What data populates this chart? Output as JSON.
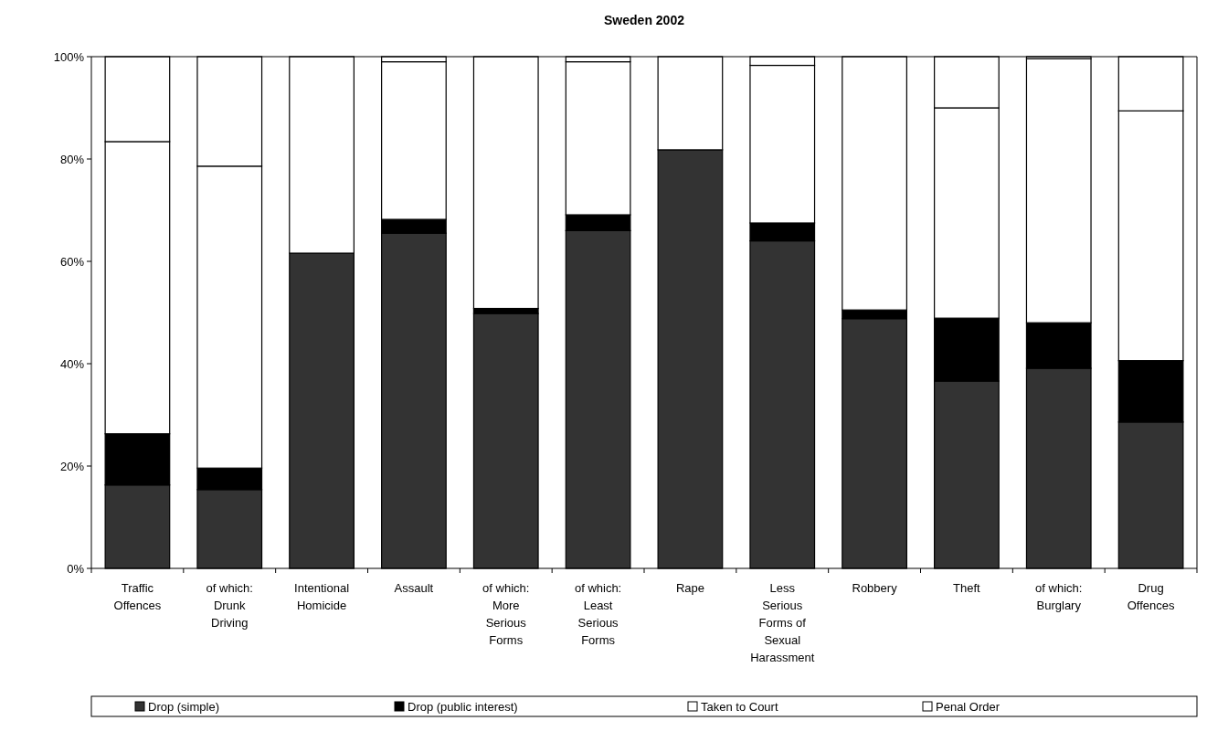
{
  "chart_data": {
    "type": "bar",
    "title": "Sweden 2002",
    "stacked": true,
    "legend": "bottom",
    "ylim": [
      0,
      100
    ],
    "yticks": [
      {
        "value": 0,
        "label": "0%"
      },
      {
        "value": 20,
        "label": "20%"
      },
      {
        "value": 40,
        "label": "40%"
      },
      {
        "value": 60,
        "label": "60%"
      },
      {
        "value": 80,
        "label": "80%"
      },
      {
        "value": 100,
        "label": "100%"
      }
    ],
    "categories": [
      "Traffic Offences",
      "of which: Drunk Driving",
      "Intentional Homicide",
      "Assault",
      "of which: More Serious Forms",
      "of which: Least Serious Forms",
      "Rape",
      "Less Serious Forms of Sexual Harassment",
      "Robbery",
      "Theft",
      "of which: Burglary",
      "Drug Offences"
    ],
    "series": [
      {
        "name": "Drop (simple)",
        "color": "#333333",
        "values": [
          16.3,
          15.4,
          61.6,
          65.5,
          49.8,
          66,
          81.8,
          64,
          48.8,
          36.6,
          39.1,
          28.6
        ]
      },
      {
        "name": "Drop (public interest)",
        "color": "#000000",
        "values": [
          10,
          4.2,
          0,
          2.7,
          1,
          3.1,
          0,
          3.5,
          1.7,
          12.3,
          8.9,
          12
        ]
      },
      {
        "name": "Taken to Court",
        "color": "#ffffff",
        "values": [
          57.1,
          59,
          38.4,
          30.8,
          49.2,
          29.9,
          18.2,
          30.8,
          49.5,
          41.1,
          51.6,
          48.8
        ]
      },
      {
        "name": "Penal Order",
        "color": "#ffffff",
        "values": [
          16.6,
          21.4,
          0,
          1,
          0,
          1,
          0,
          1.7,
          0,
          10,
          0.4,
          10.6
        ]
      }
    ]
  }
}
